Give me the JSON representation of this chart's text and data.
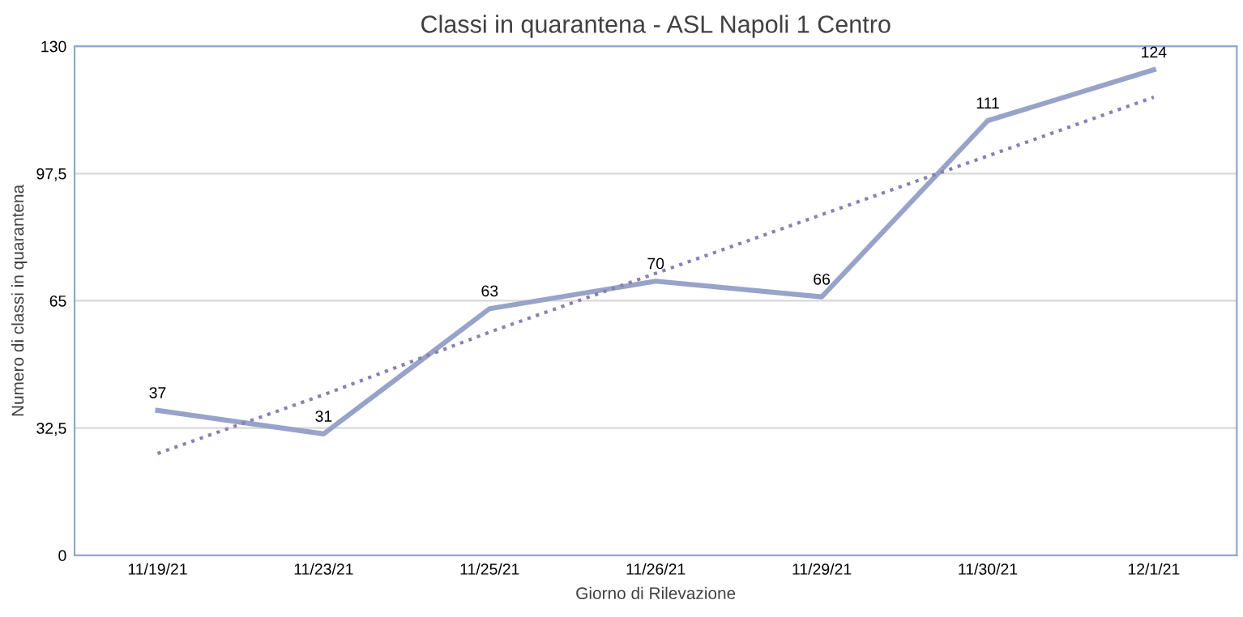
{
  "chart_data": {
    "type": "line",
    "title": "Classi in quarantena - ASL Napoli 1 Centro",
    "xlabel": "Giorno di Rilevazione",
    "ylabel": "Numero di classi in quarantena",
    "categories": [
      "11/19/21",
      "11/23/21",
      "11/25/21",
      "11/26/21",
      "11/29/21",
      "11/30/21",
      "12/1/21"
    ],
    "series": [
      {
        "color": "#97a3c9",
        "values": [
          37,
          31,
          63,
          70,
          66,
          111,
          124
        ],
        "value_labels": [
          "37",
          "31",
          "63",
          "70",
          "66",
          "111",
          "124"
        ],
        "line_style": "solid"
      },
      {
        "color": "#8c7fb0",
        "values": [
          26,
          41,
          57,
          72,
          87,
          102,
          117
        ],
        "line_style": "dotted"
      }
    ],
    "ylim": [
      0,
      130
    ],
    "yticks": [
      0,
      {
        "value": 32.5,
        "label": "32,5"
      },
      65,
      {
        "value": 97.5,
        "label": "97,5"
      },
      130
    ],
    "grid": "y",
    "marker": "none"
  }
}
